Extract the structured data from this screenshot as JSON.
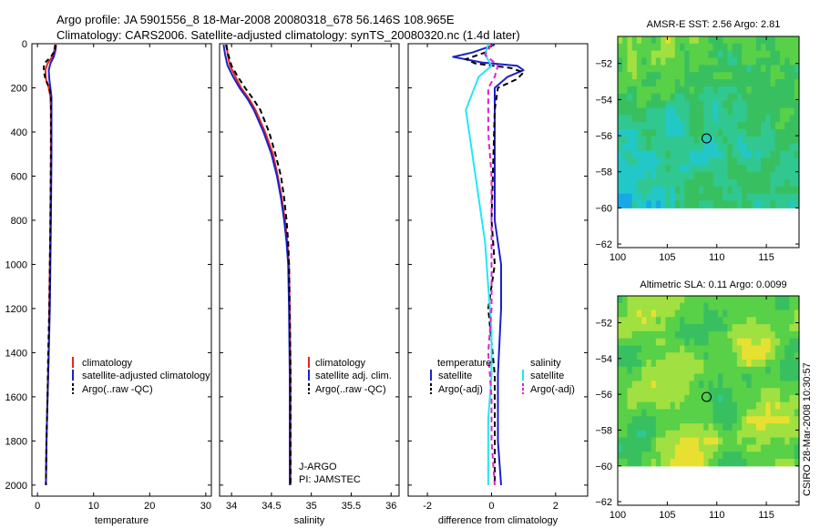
{
  "header": {
    "title_line1": "Argo profile: JA 5901556_8 18-Mar-2008 20080318_678 56.146S 108.965E",
    "title_line2": "Climatology: CARS2006. Satellite-adjusted climatology: synTS_20080320.nc (1.4d later)"
  },
  "side_note": "CSIRO 28-Mar-2008 10:30:57",
  "colors": {
    "red": "#e8241c",
    "blue": "#1c22c8",
    "black": "#000000",
    "cyan": "#22e8f0",
    "magenta": "#e020d0"
  },
  "chart_data": [
    {
      "id": "temperature",
      "type": "line",
      "xlabel": "temperature",
      "ylabel": "",
      "xlim": [
        -1,
        31
      ],
      "ylim": [
        2050,
        0
      ],
      "xticks": [
        0,
        10,
        20,
        30
      ],
      "yticks": [
        0,
        200,
        400,
        600,
        800,
        1000,
        1200,
        1400,
        1600,
        1800,
        2000
      ],
      "legend": [
        "climatology",
        "satellite-adjusted climatology",
        "Argo(..raw -QC)"
      ],
      "series": [
        {
          "name": "climatology",
          "color": "red",
          "dash": "",
          "points": [
            [
              3.1,
              5
            ],
            [
              3.0,
              30
            ],
            [
              2.6,
              60
            ],
            [
              1.8,
              90
            ],
            [
              1.4,
              120
            ],
            [
              1.5,
              160
            ],
            [
              2.0,
              200
            ],
            [
              2.3,
              240
            ],
            [
              2.4,
              300
            ],
            [
              2.4,
              500
            ],
            [
              2.3,
              800
            ],
            [
              2.2,
              1000
            ],
            [
              2.1,
              1200
            ],
            [
              2.0,
              1400
            ],
            [
              1.8,
              1600
            ],
            [
              1.6,
              1800
            ],
            [
              1.5,
              2000
            ]
          ]
        },
        {
          "name": "satellite-adjusted climatology",
          "color": "blue",
          "dash": "",
          "points": [
            [
              3.3,
              5
            ],
            [
              3.2,
              30
            ],
            [
              2.9,
              60
            ],
            [
              2.3,
              90
            ],
            [
              2.0,
              120
            ],
            [
              2.1,
              160
            ],
            [
              2.3,
              200
            ],
            [
              2.5,
              240
            ],
            [
              2.5,
              300
            ],
            [
              2.5,
              500
            ],
            [
              2.4,
              800
            ],
            [
              2.3,
              1000
            ],
            [
              2.2,
              1200
            ],
            [
              2.0,
              1400
            ],
            [
              1.8,
              1600
            ],
            [
              1.6,
              1800
            ],
            [
              1.5,
              2000
            ]
          ]
        },
        {
          "name": "Argo(..raw -QC)",
          "color": "black",
          "dash": "5,4",
          "points": [
            [
              3.2,
              5
            ],
            [
              3.1,
              30
            ],
            [
              2.4,
              60
            ],
            [
              1.2,
              90
            ],
            [
              1.1,
              120
            ],
            [
              1.4,
              160
            ],
            [
              2.1,
              200
            ],
            [
              2.4,
              240
            ],
            [
              2.4,
              300
            ],
            [
              2.4,
              500
            ],
            [
              2.3,
              800
            ],
            [
              2.2,
              1000
            ],
            [
              2.1,
              1200
            ],
            [
              1.9,
              1400
            ],
            [
              1.8,
              1600
            ],
            [
              1.6,
              1800
            ],
            [
              1.5,
              2000
            ]
          ]
        }
      ]
    },
    {
      "id": "salinity",
      "type": "line",
      "xlabel": "salinity",
      "ylabel": "",
      "xlim": [
        33.85,
        36.1
      ],
      "ylim": [
        2050,
        0
      ],
      "xticks": [
        34,
        34.5,
        35,
        35.5,
        36
      ],
      "xtick_labels": [
        "34",
        "34.5",
        "35",
        "35.5",
        "36"
      ],
      "yticks": [
        0,
        200,
        400,
        600,
        800,
        1000,
        1200,
        1400,
        1600,
        1800,
        2000
      ],
      "legend": [
        "climatology",
        "satellite adj. clim.",
        "Argo(..raw -QC)"
      ],
      "notes": [
        "J-ARGO",
        "PI: JAMSTEC"
      ],
      "series": [
        {
          "name": "climatology",
          "color": "red",
          "dash": "",
          "points": [
            [
              33.94,
              5
            ],
            [
              33.95,
              50
            ],
            [
              33.98,
              100
            ],
            [
              34.05,
              150
            ],
            [
              34.12,
              200
            ],
            [
              34.22,
              250
            ],
            [
              34.3,
              300
            ],
            [
              34.42,
              400
            ],
            [
              34.52,
              500
            ],
            [
              34.58,
              600
            ],
            [
              34.63,
              700
            ],
            [
              34.67,
              800
            ],
            [
              34.7,
              900
            ],
            [
              34.72,
              1000
            ],
            [
              34.73,
              1200
            ],
            [
              34.74,
              1500
            ],
            [
              34.74,
              2000
            ]
          ]
        },
        {
          "name": "satellite adj. clim.",
          "color": "blue",
          "dash": "",
          "points": [
            [
              33.9,
              5
            ],
            [
              33.92,
              50
            ],
            [
              33.95,
              100
            ],
            [
              34.02,
              150
            ],
            [
              34.1,
              200
            ],
            [
              34.2,
              250
            ],
            [
              34.28,
              300
            ],
            [
              34.4,
              400
            ],
            [
              34.5,
              500
            ],
            [
              34.57,
              600
            ],
            [
              34.62,
              700
            ],
            [
              34.66,
              800
            ],
            [
              34.69,
              900
            ],
            [
              34.71,
              1000
            ],
            [
              34.72,
              1200
            ],
            [
              34.73,
              1500
            ],
            [
              34.73,
              2000
            ]
          ]
        },
        {
          "name": "Argo(..raw -QC)",
          "color": "black",
          "dash": "6,4",
          "points": [
            [
              33.93,
              5
            ],
            [
              33.96,
              50
            ],
            [
              34.0,
              100
            ],
            [
              34.08,
              150
            ],
            [
              34.17,
              200
            ],
            [
              34.27,
              250
            ],
            [
              34.36,
              300
            ],
            [
              34.47,
              400
            ],
            [
              34.55,
              500
            ],
            [
              34.62,
              600
            ],
            [
              34.66,
              700
            ],
            [
              34.69,
              800
            ],
            [
              34.71,
              900
            ],
            [
              34.72,
              1000
            ],
            [
              34.73,
              1200
            ],
            [
              34.74,
              1500
            ],
            [
              34.74,
              2000
            ]
          ]
        }
      ]
    },
    {
      "id": "difference",
      "type": "line",
      "xlabel": "difference from climatology",
      "ylabel": "",
      "xlim": [
        -2.6,
        3.0
      ],
      "ylim": [
        2050,
        0
      ],
      "xticks": [
        -2,
        0,
        2
      ],
      "yticks": [
        0,
        200,
        400,
        600,
        800,
        1000,
        1200,
        1400,
        1600,
        1800,
        2000
      ],
      "legend_titles": [
        "temperature",
        "salinity"
      ],
      "legend": [
        "satellite",
        "Argo(-adj)",
        "satellite",
        "Argo(-adj)"
      ],
      "series": [
        {
          "name": "temperature satellite",
          "color": "blue",
          "dash": "",
          "points": [
            [
              0.1,
              5
            ],
            [
              -0.6,
              40
            ],
            [
              -1.2,
              60
            ],
            [
              -0.3,
              85
            ],
            [
              0.8,
              100
            ],
            [
              1.0,
              120
            ],
            [
              0.5,
              150
            ],
            [
              0.1,
              200
            ],
            [
              0.1,
              300
            ],
            [
              0.1,
              800
            ],
            [
              0.3,
              1000
            ],
            [
              0.3,
              1200
            ],
            [
              0.2,
              1500
            ],
            [
              0.2,
              1800
            ],
            [
              0.3,
              2000
            ]
          ]
        },
        {
          "name": "temperature Argo(-adj)",
          "color": "black",
          "dash": "6,4",
          "points": [
            [
              0.0,
              5
            ],
            [
              -0.2,
              40
            ],
            [
              -0.8,
              70
            ],
            [
              -0.5,
              90
            ],
            [
              0.6,
              110
            ],
            [
              1.0,
              130
            ],
            [
              0.8,
              160
            ],
            [
              0.2,
              200
            ],
            [
              0.1,
              300
            ],
            [
              0.0,
              800
            ],
            [
              0.1,
              1000
            ],
            [
              -0.1,
              1200
            ],
            [
              0.1,
              1500
            ],
            [
              0.1,
              2000
            ]
          ]
        },
        {
          "name": "salinity satellite",
          "color": "cyan",
          "dash": "",
          "points": [
            [
              -0.1,
              5
            ],
            [
              -0.2,
              50
            ],
            [
              0.0,
              100
            ],
            [
              -0.4,
              150
            ],
            [
              -0.8,
              300
            ],
            [
              -0.6,
              500
            ],
            [
              -0.4,
              700
            ],
            [
              -0.2,
              900
            ],
            [
              -0.1,
              1100
            ],
            [
              0.0,
              1300
            ],
            [
              0.0,
              1500
            ],
            [
              -0.1,
              1700
            ],
            [
              -0.1,
              2000
            ]
          ]
        },
        {
          "name": "salinity Argo(-adj)",
          "color": "magenta",
          "dash": "6,4",
          "points": [
            [
              0.0,
              5
            ],
            [
              -0.2,
              50
            ],
            [
              0.2,
              100
            ],
            [
              0.1,
              150
            ],
            [
              -0.1,
              200
            ],
            [
              -0.1,
              400
            ],
            [
              0.0,
              600
            ],
            [
              0.0,
              800
            ],
            [
              0.0,
              1000
            ],
            [
              0.0,
              1200
            ],
            [
              -0.1,
              1400
            ],
            [
              0.0,
              1600
            ],
            [
              0.0,
              1800
            ],
            [
              0.1,
              2000
            ]
          ]
        }
      ]
    },
    {
      "id": "sst_map",
      "type": "heatmap",
      "title": "AMSR-E SST: 2.56 Argo: 2.81",
      "xlim": [
        100,
        118.3
      ],
      "ylim": [
        -62.2,
        -50.5
      ],
      "xticks": [
        100,
        105,
        110,
        115
      ],
      "yticks": [
        -52,
        -54,
        -56,
        -58,
        -60,
        -62
      ],
      "data_lat_min": -60,
      "marker": [
        108.965,
        -56.146
      ],
      "palette": [
        "#18a8e8",
        "#22c8c8",
        "#30c890",
        "#38c060",
        "#58d048",
        "#a0e040",
        "#e8e030",
        "#f8a020"
      ],
      "grid": {
        "cols": 38,
        "rows": 24,
        "base": 3.5,
        "lon_slope": -0.12,
        "lat_slope": 0.5,
        "noise": 0.7,
        "west_cool": 2.2,
        "center_cool": 1.6,
        "seed": 7
      }
    },
    {
      "id": "sla_map",
      "type": "heatmap",
      "title": "Altimetric SLA: 0.11 Argo: 0.0099",
      "xlim": [
        100,
        118.3
      ],
      "ylim": [
        -62.2,
        -50.5
      ],
      "xticks": [
        100,
        105,
        110,
        115
      ],
      "yticks": [
        -52,
        -54,
        -56,
        -58,
        -60,
        -62
      ],
      "data_lat_min": -60,
      "marker": [
        108.965,
        -56.146
      ],
      "palette": [
        "#18a8e8",
        "#22c8c8",
        "#30c890",
        "#38c060",
        "#58d048",
        "#a0e040",
        "#e8e030",
        "#f8a020"
      ],
      "grid": {
        "cols": 38,
        "rows": 24,
        "base": 4.3,
        "lon_slope": 0.0,
        "lat_slope": 0.0,
        "noise": 0.5,
        "west_cool": 0.0,
        "center_cool": 0.0,
        "eddy": 1.4,
        "seed": 19
      }
    }
  ]
}
